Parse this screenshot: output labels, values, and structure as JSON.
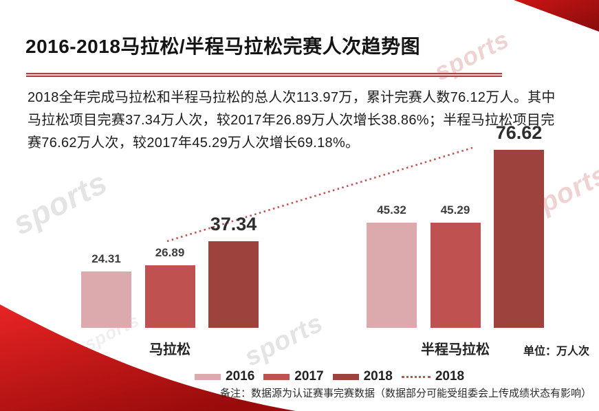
{
  "header": {
    "title": "2016-2018马拉松/半程马拉松完赛人次趋势图"
  },
  "summary": {
    "lines": [
      "2018全年完成马拉松和半程马拉松的总人次113.97万，累计完赛人数76.12万人。其中",
      "马拉松项目完赛37.34万人次，较2017年26.89万人次增长38.86%；半程马拉松项目完",
      "赛76.62万人次，较2017年45.29万人次增长69.18%。"
    ]
  },
  "chart_data": {
    "type": "bar",
    "title": "2016-2018马拉松/半程马拉松完赛人次趋势图",
    "unit_label": "单位：万人次",
    "categories": [
      "马拉松",
      "半程马拉松"
    ],
    "series": [
      {
        "name": "2016",
        "color": "#dca9ac",
        "values": [
          24.31,
          45.32
        ],
        "emphasis": false
      },
      {
        "name": "2017",
        "color": "#bf5251",
        "values": [
          26.89,
          45.29
        ],
        "emphasis": false
      },
      {
        "name": "2018",
        "color": "#9e423e",
        "values": [
          37.34,
          76.62
        ],
        "emphasis": true
      }
    ],
    "trend": {
      "name": "2018",
      "style": "dotted",
      "color": "#c0504d",
      "links_series": "2018"
    },
    "ylim": [
      0,
      80
    ],
    "grid": false,
    "legend_position": "bottom"
  },
  "footer": {
    "note": "备注：数据源为认证赛事完赛数据（数据部分可能受组委会上传成绩状态有影响）"
  },
  "watermark": {
    "text": "sports"
  },
  "colors": {
    "title_rule": "#a84543",
    "corner_wedge_top": "#cc1414",
    "corner_wedge_bottom": "#860c0c",
    "swoosh_top": "#e82424",
    "swoosh_bottom": "#990b0b",
    "trend_line": "#c0504d"
  }
}
